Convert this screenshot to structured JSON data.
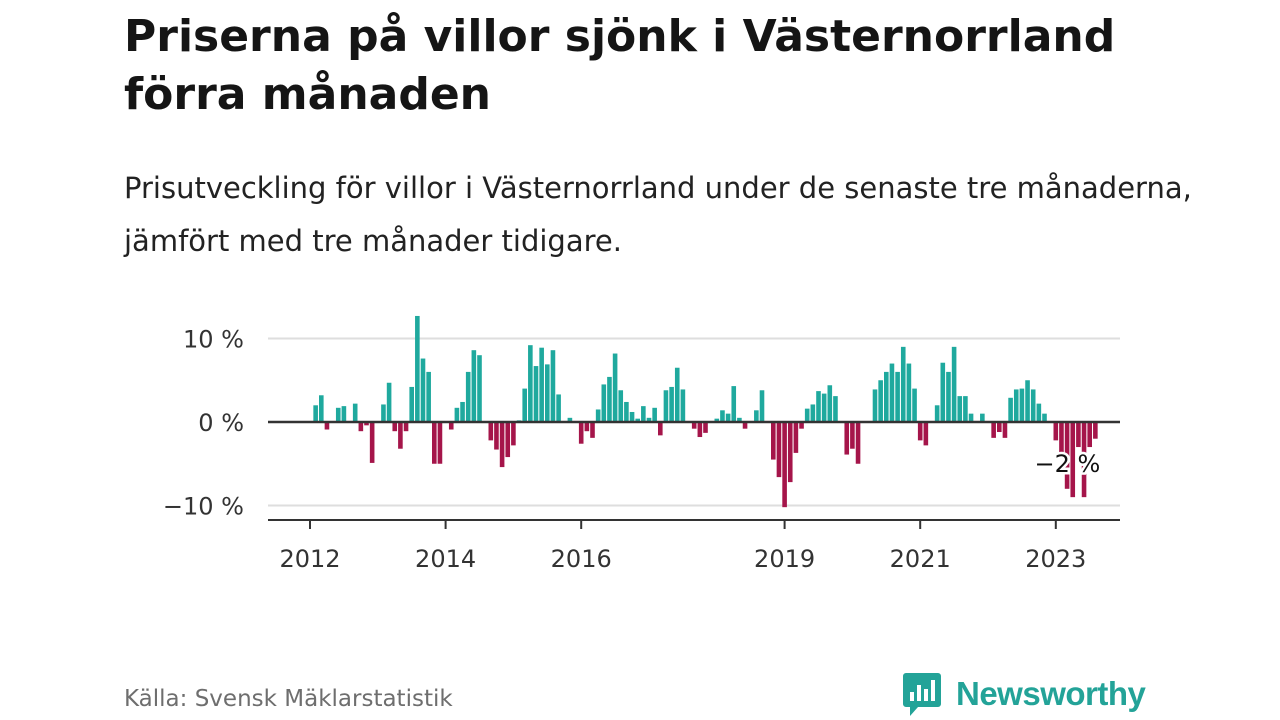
{
  "title": "Priserna på villor sjönk i Västernorrland förra månaden",
  "subtitle": "Prisutveckling för villor i Västernorrland under de senaste tre månaderna, jämfört med tre månader tidigare.",
  "source": "Källa: Svensk Mäklarstatistik",
  "brand": {
    "name": "Newsworthy",
    "color": "#23a398"
  },
  "colors": {
    "positive": "#1fa99e",
    "negative": "#a5154a",
    "zero_line": "#333333",
    "grid": "#dedede"
  },
  "chart_data": {
    "type": "bar",
    "ylim": [
      -12,
      12
    ],
    "y_ticks": [
      {
        "value": 10,
        "label": "10 %"
      },
      {
        "value": 0,
        "label": "0 %"
      },
      {
        "value": -10,
        "label": "−10 %"
      }
    ],
    "x_ticks": [
      {
        "index": 0,
        "label": "2012"
      },
      {
        "index": 24,
        "label": "2014"
      },
      {
        "index": 48,
        "label": "2016"
      },
      {
        "index": 84,
        "label": "2019"
      },
      {
        "index": 108,
        "label": "2021"
      },
      {
        "index": 132,
        "label": "2023"
      }
    ],
    "annotation": {
      "index": 133,
      "text": "−2 %"
    },
    "values": [
      0,
      2,
      3.2,
      -0.9,
      0,
      1.7,
      1.9,
      0,
      2.2,
      -1.1,
      -0.4,
      -4.9,
      0,
      2.1,
      4.7,
      -1.1,
      -3.2,
      -1.1,
      4.2,
      12.7,
      7.6,
      6,
      -5,
      -5,
      0,
      -0.9,
      1.7,
      2.4,
      6,
      8.6,
      8,
      0,
      -2.2,
      -3.3,
      -5.4,
      -4.2,
      -2.8,
      0.2,
      4,
      9.2,
      6.7,
      8.9,
      6.9,
      8.6,
      3.3,
      0,
      0.5,
      0,
      -2.6,
      -1.1,
      -1.9,
      1.5,
      4.5,
      5.4,
      8.2,
      3.8,
      2.4,
      1.2,
      0.4,
      1.9,
      0.5,
      1.7,
      -1.6,
      3.8,
      4.2,
      6.5,
      3.9,
      0,
      -0.8,
      -1.8,
      -1.3,
      0,
      0.4,
      1.4,
      1,
      4.3,
      0.5,
      -0.8,
      0,
      1.4,
      3.8,
      0,
      -4.5,
      -6.6,
      -10.2,
      -7.2,
      -3.7,
      -0.8,
      1.6,
      2.1,
      3.7,
      3.4,
      4.4,
      3.1,
      0,
      -3.9,
      -3.2,
      -5,
      0,
      0,
      3.9,
      5,
      6,
      7,
      6,
      9,
      7,
      4,
      -2.2,
      -2.8,
      0,
      2,
      7.1,
      6,
      9,
      3.1,
      3.1,
      1,
      0,
      1,
      0,
      -1.9,
      -1.2,
      -1.9,
      2.9,
      3.9,
      4,
      5,
      3.9,
      2.2,
      1,
      0,
      -2.2,
      -4,
      -8,
      -9,
      -3,
      -9,
      -3,
      -2
    ]
  }
}
